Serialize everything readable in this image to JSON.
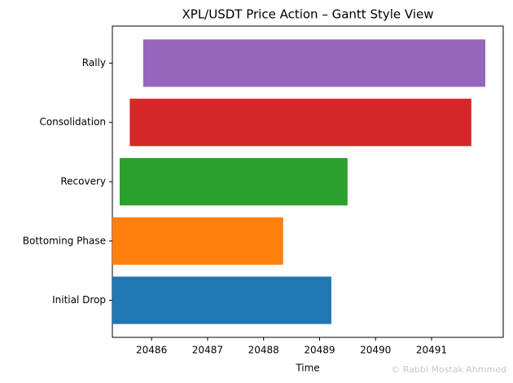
{
  "chart_data": {
    "type": "gantt",
    "title": "XPL/USDT Price Action – Gantt Style View",
    "x_label": "Time",
    "categories": [
      "Initial Drop",
      "Bottoming Phase",
      "Recovery",
      "Consolidation",
      "Rally"
    ],
    "starts": [
      20485.3,
      20485.3,
      20485.43,
      20485.61,
      20485.85
    ],
    "ends": [
      20489.21,
      20488.35,
      20489.5,
      20491.71,
      20491.96
    ],
    "colors": [
      "#1f77b4",
      "#ff7f0e",
      "#2ca02c",
      "#d62728",
      "#9467bd"
    ],
    "xlim": [
      20485.3,
      20492.28
    ],
    "xticks": [
      20486,
      20487,
      20488,
      20489,
      20490,
      20491
    ],
    "watermark": "© Rabbi  Mostak Ahmmed"
  }
}
